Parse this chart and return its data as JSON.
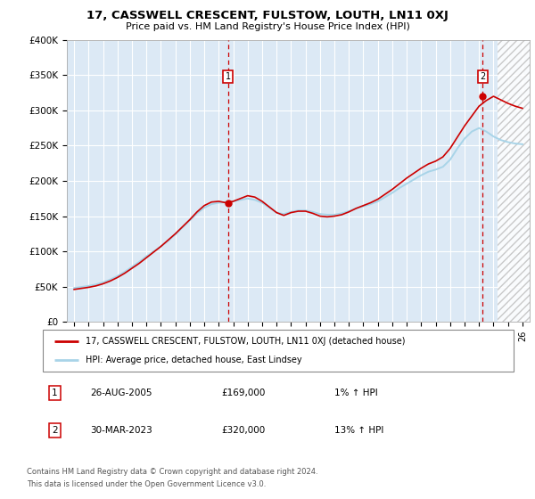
{
  "title": "17, CASSWELL CRESCENT, FULSTOW, LOUTH, LN11 0XJ",
  "subtitle": "Price paid vs. HM Land Registry's House Price Index (HPI)",
  "ylabel_ticks": [
    "£0",
    "£50K",
    "£100K",
    "£150K",
    "£200K",
    "£250K",
    "£300K",
    "£350K",
    "£400K"
  ],
  "ylabel_values": [
    0,
    50000,
    100000,
    150000,
    200000,
    250000,
    300000,
    350000,
    400000
  ],
  "ylim": [
    0,
    400000
  ],
  "xlim_start": 1994.5,
  "xlim_end": 2026.5,
  "xtick_years": [
    1995,
    1996,
    1997,
    1998,
    1999,
    2000,
    2001,
    2002,
    2003,
    2004,
    2005,
    2006,
    2007,
    2008,
    2009,
    2010,
    2011,
    2012,
    2013,
    2014,
    2015,
    2016,
    2017,
    2018,
    2019,
    2020,
    2021,
    2022,
    2023,
    2024,
    2025,
    2026
  ],
  "hpi_color": "#a8d4e8",
  "price_color": "#cc0000",
  "bg_color": "#dce9f5",
  "marker1_year": 2005.65,
  "marker1_value": 169000,
  "marker1_label": "1",
  "marker1_date": "26-AUG-2005",
  "marker1_price": "£169,000",
  "marker1_hpi": "1% ↑ HPI",
  "marker2_year": 2023.24,
  "marker2_value": 320000,
  "marker2_label": "2",
  "marker2_date": "30-MAR-2023",
  "marker2_price": "£320,000",
  "marker2_hpi": "13% ↑ HPI",
  "legend_line1": "17, CASSWELL CRESCENT, FULSTOW, LOUTH, LN11 0XJ (detached house)",
  "legend_line2": "HPI: Average price, detached house, East Lindsey",
  "footer1": "Contains HM Land Registry data © Crown copyright and database right 2024.",
  "footer2": "This data is licensed under the Open Government Licence v3.0.",
  "hatch_start": 2024.25,
  "hpi_x": [
    1995,
    1995.5,
    1996,
    1996.5,
    1997,
    1997.5,
    1998,
    1998.5,
    1999,
    1999.5,
    2000,
    2000.5,
    2001,
    2001.5,
    2002,
    2002.5,
    2003,
    2003.5,
    2004,
    2004.5,
    2005,
    2005.5,
    2006,
    2006.5,
    2007,
    2007.5,
    2008,
    2008.5,
    2009,
    2009.5,
    2010,
    2010.5,
    2011,
    2011.5,
    2012,
    2012.5,
    2013,
    2013.5,
    2014,
    2014.5,
    2015,
    2015.5,
    2016,
    2016.5,
    2017,
    2017.5,
    2018,
    2018.5,
    2019,
    2019.5,
    2020,
    2020.5,
    2021,
    2021.5,
    2022,
    2022.5,
    2023,
    2023.5,
    2024,
    2024.5,
    2025,
    2025.5,
    2026
  ],
  "hpi_y": [
    48000,
    49500,
    51000,
    53000,
    56000,
    60000,
    65000,
    71000,
    78000,
    85000,
    93000,
    100000,
    107000,
    115000,
    124000,
    134000,
    144000,
    154000,
    162000,
    167000,
    169000,
    170000,
    171000,
    173000,
    175000,
    173000,
    169000,
    162000,
    155000,
    153000,
    156000,
    158000,
    158000,
    156000,
    153000,
    152000,
    152000,
    154000,
    157000,
    161000,
    164000,
    167000,
    171000,
    177000,
    183000,
    190000,
    196000,
    202000,
    208000,
    213000,
    216000,
    220000,
    230000,
    246000,
    260000,
    270000,
    275000,
    270000,
    263000,
    258000,
    255000,
    253000,
    252000
  ],
  "price_x": [
    1995,
    1995.5,
    1996,
    1996.5,
    1997,
    1997.5,
    1998,
    1998.5,
    1999,
    1999.5,
    2000,
    2000.5,
    2001,
    2001.5,
    2002,
    2002.5,
    2003,
    2003.5,
    2004,
    2004.5,
    2005,
    2005.5,
    2006,
    2006.5,
    2007,
    2007.5,
    2008,
    2008.5,
    2009,
    2009.5,
    2010,
    2010.5,
    2011,
    2011.5,
    2012,
    2012.5,
    2013,
    2013.5,
    2014,
    2014.5,
    2015,
    2015.5,
    2016,
    2016.5,
    2017,
    2017.5,
    2018,
    2018.5,
    2019,
    2019.5,
    2020,
    2020.5,
    2021,
    2021.5,
    2022,
    2022.5,
    2023,
    2023.5,
    2024,
    2024.5,
    2025,
    2025.5,
    2026
  ],
  "price_y": [
    46000,
    47500,
    49000,
    51000,
    54000,
    58000,
    63000,
    69000,
    76000,
    83000,
    91000,
    99000,
    107000,
    116000,
    125000,
    135000,
    145000,
    156000,
    165000,
    170000,
    171000,
    169000,
    171000,
    175000,
    179000,
    177000,
    171000,
    163000,
    155000,
    151000,
    155000,
    157000,
    157000,
    154000,
    150000,
    149000,
    150000,
    152000,
    156000,
    161000,
    165000,
    169000,
    174000,
    181000,
    188000,
    196000,
    204000,
    211000,
    218000,
    224000,
    228000,
    234000,
    246000,
    262000,
    278000,
    292000,
    306000,
    314000,
    320000,
    315000,
    310000,
    306000,
    303000
  ]
}
